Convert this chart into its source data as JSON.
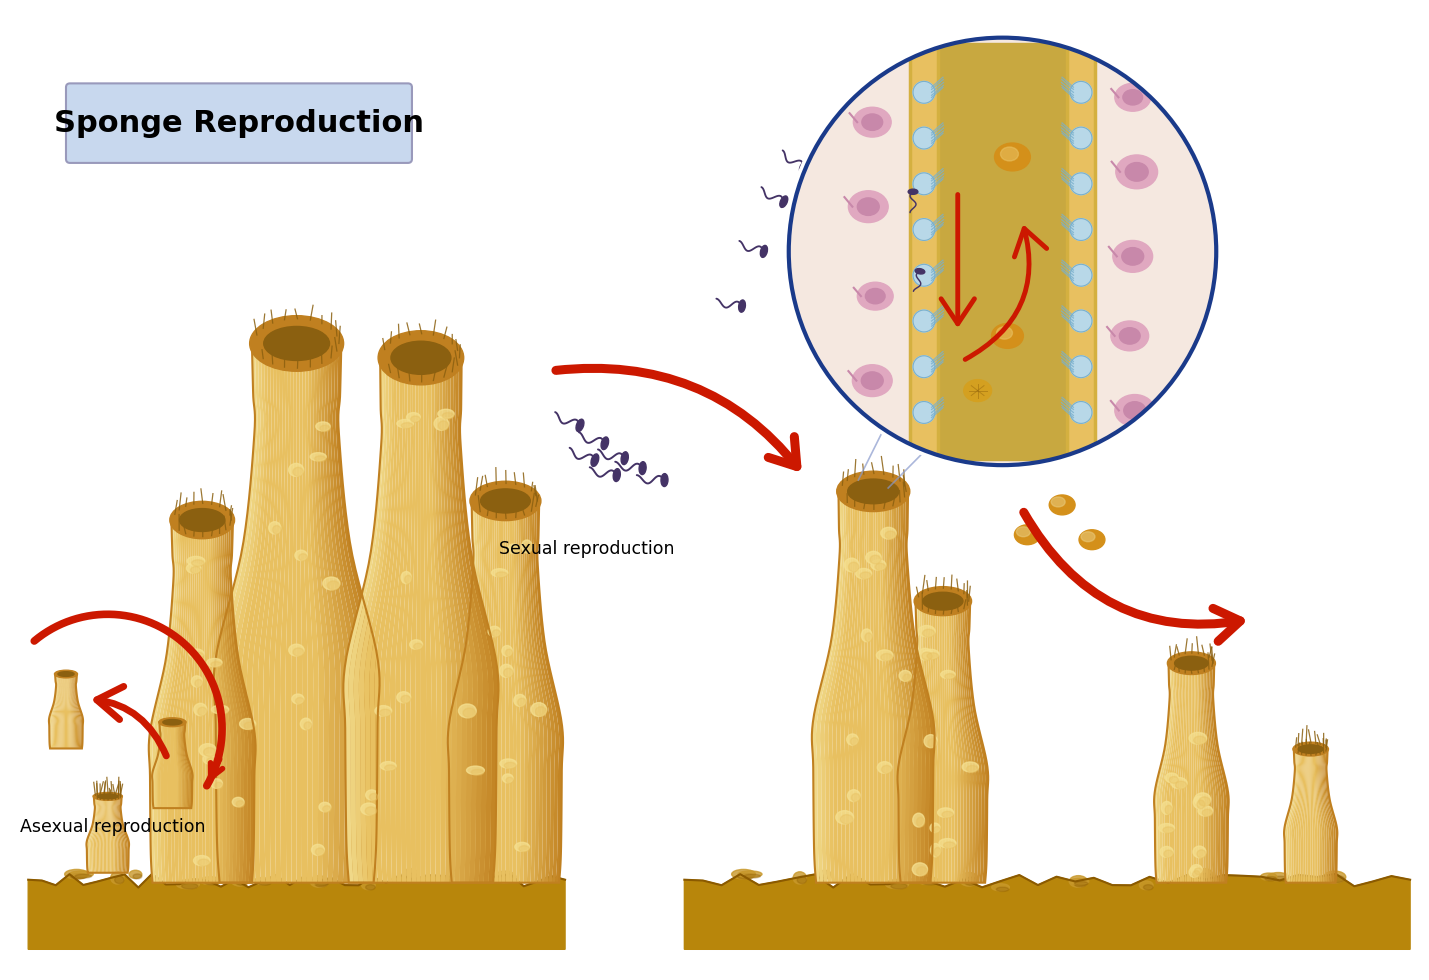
{
  "title": "Sponge Reproduction",
  "title_box_color": "#c8d8ee",
  "title_box_edge": "#9999bb",
  "bg_color": "#ffffff",
  "label_asexual": "Asexual reproduction",
  "label_sexual": "Sexual reproduction",
  "sponge_body_color": "#e8c060",
  "sponge_mid_color": "#ddb040",
  "sponge_shadow_color": "#c08020",
  "sponge_highlight": "#f0d888",
  "sponge_tip_color": "#8b6010",
  "sponge_pore_color": "#f5e090",
  "ground_color": "#b8860b",
  "ground_dark": "#8b5a00",
  "ground_light": "#c8982a",
  "arrow_color": "#cc1800",
  "sperm_color": "#443366",
  "circle_border": "#1a3a8a",
  "inner_canal_color": "#c8a840",
  "inner_wall_outer": "#e8c060",
  "inner_wall_inner": "#d4b040",
  "inner_bg": "#f5e8e0",
  "inner_cell_color": "#b8d8e8",
  "inner_cell_dark": "#7ab0cc",
  "inner_egg_color": "#d4901a",
  "inner_pink_color": "#e0a8c0",
  "inner_pink_dark": "#c888aa",
  "sperm_inside": "#443366"
}
